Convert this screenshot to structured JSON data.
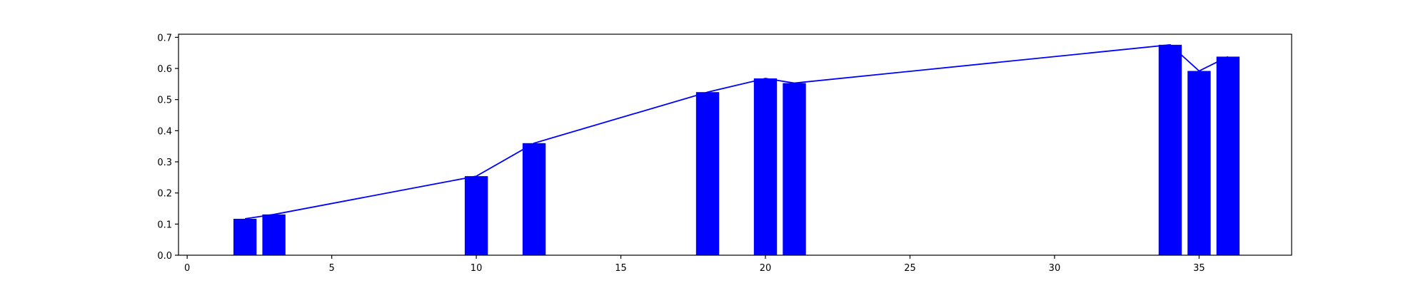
{
  "chart_data": {
    "type": "bar",
    "title": "",
    "xlabel": "",
    "ylabel": "",
    "xlim": [
      -0.3,
      38.2
    ],
    "ylim": [
      0,
      0.71
    ],
    "grid": false,
    "legend": "none",
    "bar_width": 0.8,
    "bar_color": "#0000ff",
    "line_color": "#0000ff",
    "x_ticks": [
      "0",
      "5",
      "10",
      "15",
      "20",
      "25",
      "30",
      "35"
    ],
    "y_ticks": [
      "0.0",
      "0.1",
      "0.2",
      "0.3",
      "0.4",
      "0.5",
      "0.6",
      "0.7"
    ],
    "series": [
      {
        "type": "bar",
        "x": [
          2,
          3,
          10,
          12,
          18,
          20,
          21,
          34,
          35,
          36
        ],
        "values": [
          0.117,
          0.131,
          0.254,
          0.36,
          0.524,
          0.568,
          0.553,
          0.676,
          0.592,
          0.638
        ]
      },
      {
        "type": "line",
        "x": [
          2,
          3,
          10,
          12,
          18,
          20,
          21,
          34,
          35,
          36
        ],
        "values": [
          0.117,
          0.131,
          0.254,
          0.36,
          0.524,
          0.568,
          0.553,
          0.676,
          0.592,
          0.638
        ]
      }
    ]
  }
}
